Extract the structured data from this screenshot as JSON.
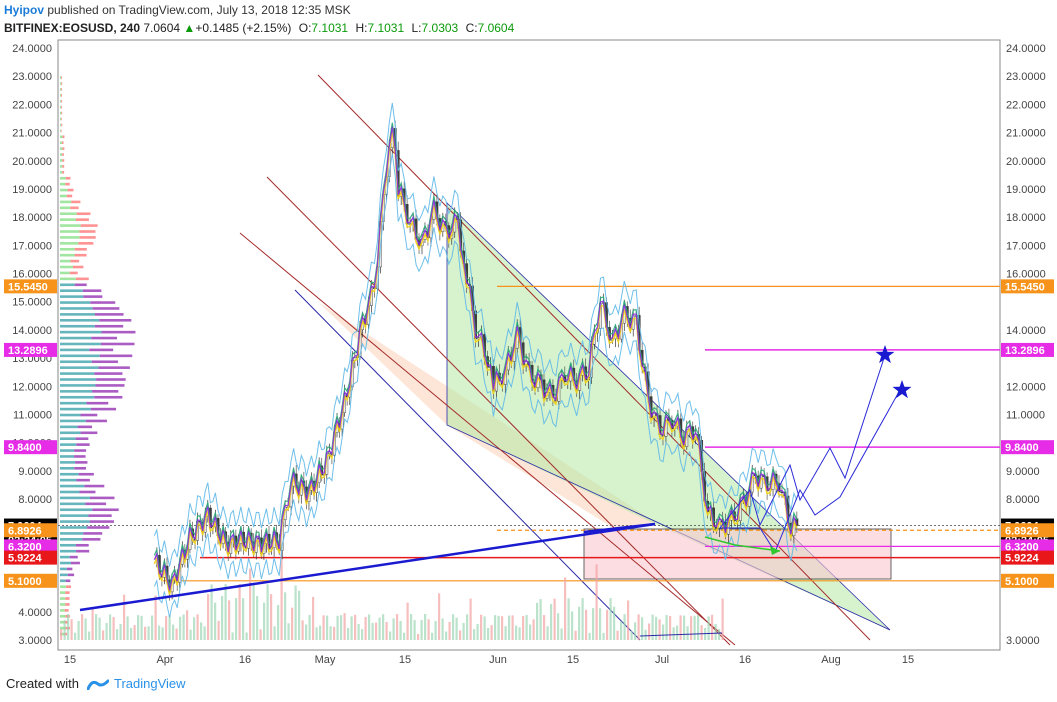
{
  "header": {
    "author": "Hyipov",
    "published_text": "published on TradingView.com, July 13, 2018 12:35 MSK",
    "symbol": "BITFINEX:EOSUSD, 240",
    "last": "7.0604",
    "change": "+0.1485 (+2.15%)",
    "open_label": "O:",
    "open": "7.1031",
    "high_label": "H:",
    "high": "7.1031",
    "low_label": "L:",
    "low": "7.0303",
    "close_label": "C:",
    "close": "7.0604"
  },
  "footer": {
    "created_with": "Created with",
    "brand": "TradingView"
  },
  "colors": {
    "orange": "#f7931a",
    "magenta": "#e62ce6",
    "red": "#e8171a",
    "black": "#000000",
    "blue_line": "#1a1ad0",
    "channel": "#a52a2a",
    "up": "#2e7d32",
    "down": "#8b0000"
  },
  "chart_data": {
    "type": "candlestick",
    "symbol": "BITFINEX:EOSUSD",
    "interval": "240",
    "ylim": [
      2.7,
      24.0
    ],
    "y_ticks": [
      "24.0000",
      "23.0000",
      "22.0000",
      "21.0000",
      "20.0000",
      "19.0000",
      "18.0000",
      "17.0000",
      "16.0000",
      "15.0000",
      "14.0000",
      "13.0000",
      "12.0000",
      "11.0000",
      "10.0000",
      "9.0000",
      "8.0000",
      "7.0000",
      "6.0000",
      "5.0000",
      "4.0000",
      "3.0000"
    ],
    "x_ticks": [
      "15",
      "Apr",
      "16",
      "May",
      "15",
      "Jun",
      "15",
      "Jul",
      "16",
      "Aug",
      "15"
    ],
    "price_tags": [
      {
        "label": "15.5450",
        "value": 15.545,
        "color": "#f7931a"
      },
      {
        "label": "13.2896",
        "value": 13.2896,
        "color": "#e62ce6"
      },
      {
        "label": "9.8400",
        "value": 9.84,
        "color": "#e62ce6"
      },
      {
        "label": "7.0604",
        "value": 7.0604,
        "color": "#000000"
      },
      {
        "label": "02:24:05",
        "value": 6.55,
        "color": "#000000"
      },
      {
        "label": "6.8926",
        "value": 6.8926,
        "color": "#f7931a"
      },
      {
        "label": "6.3200",
        "value": 6.32,
        "color": "#e62ce6"
      },
      {
        "label": "5.9224",
        "value": 5.9224,
        "color": "#e8171a"
      },
      {
        "label": "5.1000",
        "value": 5.1,
        "color": "#f7931a"
      }
    ],
    "right_ticks_hidden": [
      "15.0000",
      "13.0000",
      "10.0000",
      "7.0000",
      "6.0000",
      "5.0000",
      "4.0000"
    ],
    "price_path": [
      [
        15,
        5.8
      ],
      [
        18,
        4.9
      ],
      [
        21,
        6.6
      ],
      [
        24,
        7.4
      ],
      [
        27,
        6.4
      ],
      [
        30,
        6.5
      ],
      [
        33,
        6.4
      ],
      [
        36,
        6.5
      ],
      [
        38,
        8.6
      ],
      [
        41,
        8.2
      ],
      [
        44,
        9.3
      ],
      [
        47,
        11.4
      ],
      [
        50,
        14.2
      ],
      [
        52,
        15.5
      ],
      [
        54,
        19.7
      ],
      [
        55,
        21.5
      ],
      [
        56,
        19.0
      ],
      [
        58,
        17.8
      ],
      [
        60,
        17.0
      ],
      [
        62,
        18.2
      ],
      [
        64,
        17.4
      ],
      [
        66,
        17.8
      ],
      [
        67,
        16.5
      ],
      [
        69,
        14.0
      ],
      [
        71,
        13.0
      ],
      [
        72,
        12.0
      ],
      [
        74,
        12.5
      ],
      [
        76,
        13.8
      ],
      [
        78,
        12.4
      ],
      [
        80,
        12.0
      ],
      [
        82,
        11.6
      ],
      [
        84,
        12.4
      ],
      [
        86,
        12.2
      ],
      [
        88,
        12.6
      ],
      [
        90,
        15.0
      ],
      [
        92,
        13.5
      ],
      [
        94,
        14.5
      ],
      [
        96,
        14.2
      ],
      [
        98,
        11.5
      ],
      [
        100,
        10.4
      ],
      [
        102,
        10.8
      ],
      [
        104,
        10.2
      ],
      [
        106,
        10.5
      ],
      [
        108,
        7.5
      ],
      [
        110,
        7.0
      ],
      [
        112,
        7.2
      ],
      [
        114,
        7.8
      ],
      [
        116,
        8.8
      ],
      [
        118,
        8.5
      ],
      [
        120,
        8.6
      ],
      [
        122,
        7.0
      ],
      [
        123,
        7.06
      ]
    ]
  }
}
